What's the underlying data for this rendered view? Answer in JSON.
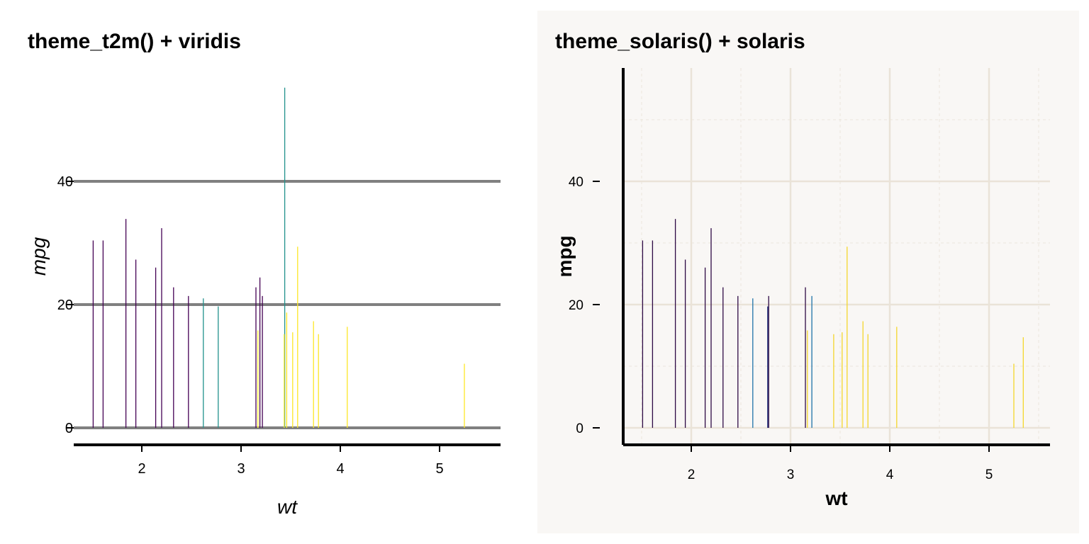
{
  "chart_data": [
    {
      "type": "bar",
      "title": "theme_t2m() + viridis",
      "xlabel": "wt",
      "ylabel": "mpg",
      "xlim": [
        1.35,
        5.6
      ],
      "ylim": [
        -3,
        58
      ],
      "xticks": [
        2,
        3,
        4,
        5
      ],
      "yticks": [
        0,
        20,
        40
      ],
      "grid": "major-y",
      "legend": "none",
      "colors": {
        "background": "#ffffff",
        "grid": "#808080",
        "axis": "#000000",
        "g1": "#440154",
        "g2": "#21918c",
        "g3": "#fde725"
      },
      "points": [
        {
          "x": 1.51,
          "y": 30.4,
          "g": 1
        },
        {
          "x": 1.61,
          "y": 30.4,
          "g": 1
        },
        {
          "x": 1.84,
          "y": 33.9,
          "g": 1
        },
        {
          "x": 1.94,
          "y": 27.3,
          "g": 1
        },
        {
          "x": 2.14,
          "y": 26.0,
          "g": 1
        },
        {
          "x": 2.2,
          "y": 32.4,
          "g": 1
        },
        {
          "x": 2.32,
          "y": 22.8,
          "g": 1
        },
        {
          "x": 2.47,
          "y": 21.4,
          "g": 1
        },
        {
          "x": 2.62,
          "y": 21.0,
          "g": 2
        },
        {
          "x": 2.77,
          "y": 19.7,
          "g": 2
        },
        {
          "x": 3.15,
          "y": 22.8,
          "g": 1
        },
        {
          "x": 3.17,
          "y": 15.8,
          "g": 3
        },
        {
          "x": 3.19,
          "y": 24.4,
          "g": 1
        },
        {
          "x": 3.215,
          "y": 21.4,
          "g": 1
        },
        {
          "x": 3.44,
          "y": 55.2,
          "g": 2
        },
        {
          "x": 3.435,
          "y": 15.2,
          "g": 3
        },
        {
          "x": 3.46,
          "y": 18.7,
          "g": 3
        },
        {
          "x": 3.52,
          "y": 15.5,
          "g": 3
        },
        {
          "x": 3.57,
          "y": 29.4,
          "g": 3
        },
        {
          "x": 3.73,
          "y": 17.3,
          "g": 3
        },
        {
          "x": 3.78,
          "y": 15.2,
          "g": 3
        },
        {
          "x": 4.07,
          "y": 16.4,
          "g": 3
        },
        {
          "x": 5.25,
          "y": 10.4,
          "g": 3
        }
      ]
    },
    {
      "type": "bar",
      "title": "theme_solaris() + solaris",
      "xlabel": "wt",
      "ylabel": "mpg",
      "xlim": [
        1.35,
        5.6
      ],
      "ylim": [
        -3,
        58
      ],
      "xticks": [
        2,
        3,
        4,
        5
      ],
      "yticks": [
        0,
        20,
        40
      ],
      "grid": "major-and-minor",
      "legend": "none",
      "colors": {
        "background": "#f9f7f5",
        "grid": "#eae3d8",
        "minor_grid": "#ebe5dd",
        "axis": "#000000",
        "g1": "#2e0a45",
        "g2": "#1f73a8",
        "g3": "#f4d62c",
        "g4": "#1d2b7a"
      },
      "points": [
        {
          "x": 1.51,
          "y": 30.4,
          "g": 1
        },
        {
          "x": 1.61,
          "y": 30.4,
          "g": 1
        },
        {
          "x": 1.84,
          "y": 33.9,
          "g": 1
        },
        {
          "x": 1.94,
          "y": 27.3,
          "g": 1
        },
        {
          "x": 2.14,
          "y": 26.0,
          "g": 1
        },
        {
          "x": 2.2,
          "y": 32.4,
          "g": 1
        },
        {
          "x": 2.32,
          "y": 22.8,
          "g": 1
        },
        {
          "x": 2.47,
          "y": 21.4,
          "g": 1
        },
        {
          "x": 2.62,
          "y": 21.0,
          "g": 2
        },
        {
          "x": 2.77,
          "y": 19.7,
          "g": 4
        },
        {
          "x": 2.78,
          "y": 21.4,
          "g": 1
        },
        {
          "x": 3.15,
          "y": 22.8,
          "g": 1
        },
        {
          "x": 3.17,
          "y": 15.8,
          "g": 3
        },
        {
          "x": 3.215,
          "y": 21.4,
          "g": 2
        },
        {
          "x": 3.435,
          "y": 15.2,
          "g": 3
        },
        {
          "x": 3.52,
          "y": 15.5,
          "g": 3
        },
        {
          "x": 3.57,
          "y": 29.4,
          "g": 3
        },
        {
          "x": 3.73,
          "y": 17.3,
          "g": 3
        },
        {
          "x": 3.78,
          "y": 15.2,
          "g": 3
        },
        {
          "x": 4.07,
          "y": 16.4,
          "g": 3
        },
        {
          "x": 5.25,
          "y": 10.4,
          "g": 3
        },
        {
          "x": 5.345,
          "y": 14.7,
          "g": 3
        }
      ]
    }
  ]
}
